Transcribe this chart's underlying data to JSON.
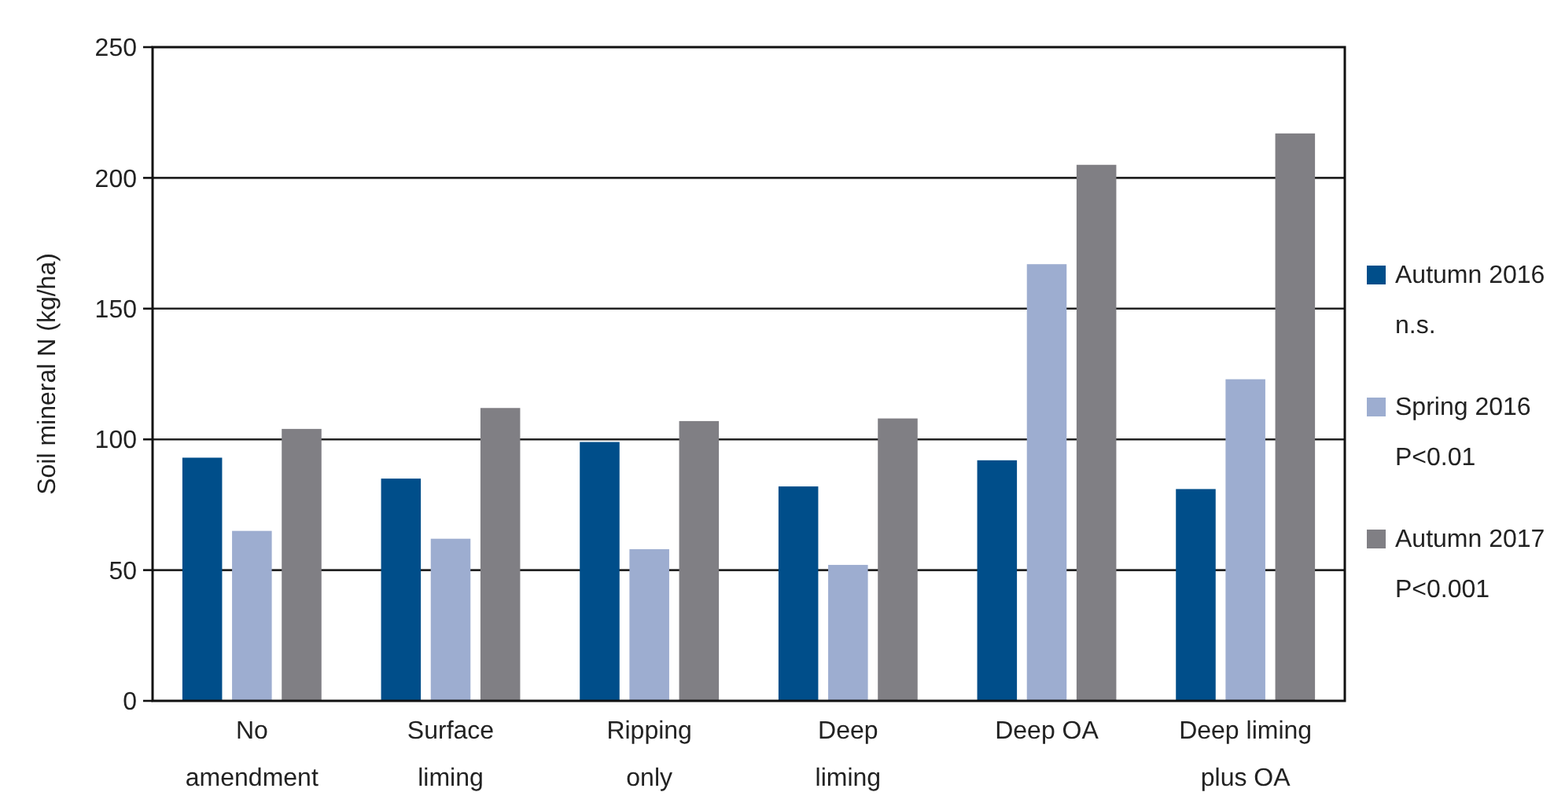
{
  "chart_data": {
    "type": "bar",
    "ylabel": "Soil mineral N (kg/ha)",
    "categories": [
      "No\namendment",
      "Surface\nliming",
      "Ripping\nonly",
      "Deep\nliming",
      "Deep OA",
      "Deep liming\nplus OA"
    ],
    "series": [
      {
        "name": "Autumn 2016",
        "color": "#004e8a",
        "values": [
          93,
          85,
          99,
          82,
          92,
          81
        ]
      },
      {
        "name": "Spring 2016",
        "color": "#9dadd0",
        "values": [
          65,
          62,
          58,
          52,
          167,
          123
        ]
      },
      {
        "name": "Autumn 2017",
        "color": "#807f84",
        "values": [
          104,
          112,
          107,
          108,
          205,
          217
        ]
      }
    ],
    "annotations": [
      "n.s.",
      "P<0.01",
      "P<0.001"
    ],
    "ylim": [
      0,
      250
    ],
    "yticks": [
      0,
      50,
      100,
      150,
      200,
      250
    ],
    "grid": "y",
    "legend": "right"
  }
}
